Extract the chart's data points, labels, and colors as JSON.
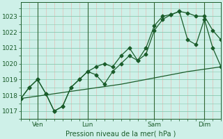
{
  "bg_color": "#cef0e8",
  "grid_major_color": "#88c8b0",
  "grid_minor_color": "#e8b0a8",
  "line_color": "#1a5c2a",
  "vline_color": "#336633",
  "xlabel": "Pression niveau de la mer( hPa )",
  "xlim": [
    0,
    72
  ],
  "ylim": [
    1016.5,
    1023.9
  ],
  "yticks": [
    1017,
    1018,
    1019,
    1020,
    1021,
    1022,
    1023
  ],
  "xtick_labels": [
    "Ven",
    "Lun",
    "Sam",
    "Dim"
  ],
  "xtick_positions": [
    6,
    24,
    48,
    66
  ],
  "vline_positions": [
    6,
    24,
    48,
    66
  ],
  "series1_x": [
    0,
    3,
    6,
    9,
    12,
    15,
    18,
    21,
    24,
    27,
    30,
    33,
    36,
    39,
    42,
    45,
    48,
    51,
    54,
    57,
    60,
    63,
    66,
    69,
    72
  ],
  "series1_y": [
    1017.8,
    1018.5,
    1019.0,
    1018.1,
    1017.0,
    1017.3,
    1018.5,
    1019.0,
    1019.5,
    1019.8,
    1020.0,
    1019.8,
    1020.5,
    1021.0,
    1020.2,
    1020.6,
    1022.1,
    1022.8,
    1023.1,
    1023.3,
    1023.2,
    1023.0,
    1023.0,
    1022.1,
    1021.5
  ],
  "series2_x": [
    0,
    3,
    6,
    9,
    12,
    15,
    18,
    21,
    24,
    27,
    30,
    33,
    36,
    39,
    42,
    45,
    48,
    51,
    54,
    57,
    60,
    63,
    66,
    69,
    72
  ],
  "series2_y": [
    1017.8,
    1018.5,
    1019.0,
    1018.1,
    1017.0,
    1017.3,
    1018.5,
    1019.0,
    1019.5,
    1019.3,
    1018.7,
    1019.5,
    1020.0,
    1020.5,
    1020.2,
    1021.0,
    1022.4,
    1023.0,
    1023.1,
    1023.3,
    1021.5,
    1021.2,
    1022.8,
    1021.0,
    1019.8
  ],
  "series3_x": [
    0,
    12,
    24,
    36,
    48,
    60,
    72
  ],
  "series3_y": [
    1017.8,
    1018.1,
    1018.4,
    1018.7,
    1019.1,
    1019.5,
    1019.8
  ]
}
